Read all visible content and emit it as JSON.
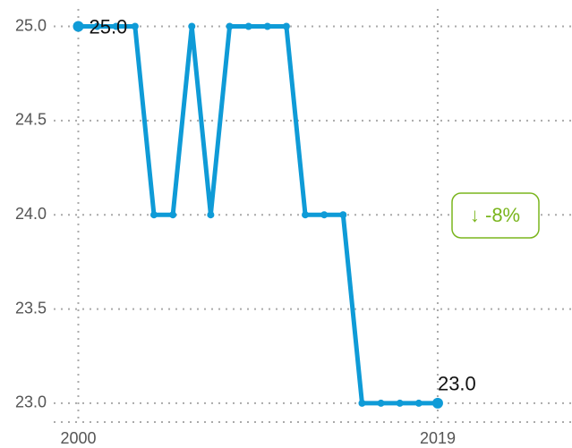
{
  "chart_data": {
    "type": "line",
    "x": [
      2000,
      2001,
      2002,
      2003,
      2004,
      2005,
      2006,
      2007,
      2008,
      2009,
      2010,
      2011,
      2012,
      2013,
      2014,
      2015,
      2016,
      2017,
      2018,
      2019
    ],
    "series": [
      {
        "color": "#0f9bd7",
        "values": [
          25,
          25,
          25,
          25,
          24,
          24,
          25,
          24,
          25,
          25,
          25,
          25,
          24,
          24,
          24,
          23,
          23,
          23,
          23,
          23
        ],
        "value_labels": [
          "25.0",
          null,
          null,
          null,
          null,
          null,
          null,
          null,
          null,
          null,
          null,
          null,
          null,
          null,
          null,
          null,
          null,
          null,
          null,
          "23.0"
        ]
      }
    ],
    "xlim": [
      1998.7,
      2026.1
    ],
    "xticks": [
      2000,
      2019
    ],
    "ylim": [
      22.9,
      25.14
    ],
    "yticks": [
      {
        "value": 23,
        "label": "23.0"
      },
      {
        "value": 23.5,
        "label": "23.5"
      },
      {
        "value": 24,
        "label": "24.0"
      },
      {
        "value": 24.5,
        "label": "24.5"
      },
      {
        "value": 25,
        "label": "25.0"
      }
    ],
    "grid": true,
    "change_label": "↓ -8%",
    "change_color": "#7ab51d"
  }
}
